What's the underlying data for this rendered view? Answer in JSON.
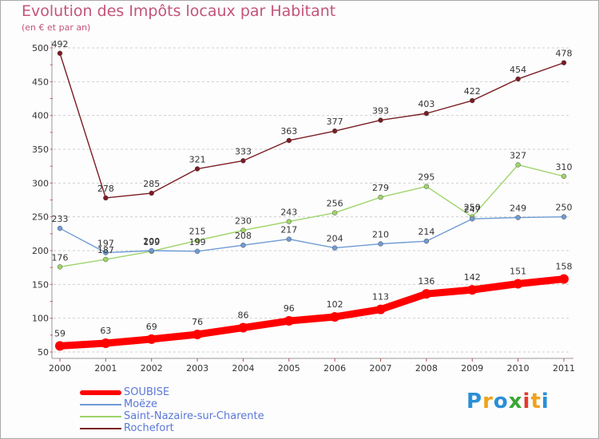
{
  "chart_data": {
    "type": "line",
    "title": "Evolution des Impôts locaux par Habitant",
    "subtitle": "(en € et par an)",
    "xlabel": "",
    "ylabel": "",
    "ylim": [
      50,
      500
    ],
    "yticks": [
      50,
      100,
      150,
      200,
      250,
      300,
      350,
      400,
      450,
      500
    ],
    "categories": [
      "2000",
      "2001",
      "2002",
      "2003",
      "2004",
      "2005",
      "2006",
      "2007",
      "2008",
      "2009",
      "2010",
      "2011"
    ],
    "grid": "horizontal dashed",
    "legend_position": "bottom-left",
    "series": [
      {
        "name": "Rochefort",
        "color": "#7a1c22",
        "values": [
          492,
          278,
          285,
          321,
          333,
          363,
          377,
          393,
          403,
          422,
          454,
          478
        ]
      },
      {
        "name": "Saint-Nazaire-sur-Charente",
        "color": "#9ed36a",
        "values": [
          176,
          187,
          199,
          215,
          230,
          243,
          256,
          279,
          295,
          250,
          327,
          310
        ]
      },
      {
        "name": "Moëze",
        "color": "#6f9bd4",
        "values": [
          233,
          197,
          200,
          199,
          208,
          217,
          204,
          210,
          214,
          247,
          249,
          250
        ]
      },
      {
        "name": "SOUBISE",
        "color": "#ff0000",
        "values": [
          59,
          63,
          69,
          76,
          86,
          96,
          102,
          113,
          136,
          142,
          151,
          158
        ]
      }
    ],
    "data_labels": {
      "Rochefort": [
        "492",
        "278",
        "285",
        "321",
        "333",
        "363",
        "377",
        "393",
        "403",
        "422",
        "454",
        "478"
      ],
      "Saint-Nazaire-sur-Charente": [
        "176",
        "187",
        "199",
        "215",
        "230",
        "243",
        "256",
        "279",
        "295",
        "250",
        "327",
        "310"
      ],
      "Moëze": [
        "233",
        "197",
        "200",
        "199",
        "208",
        "217",
        "204",
        "210",
        "214",
        "247",
        "249",
        "250"
      ],
      "SOUBISE": [
        "59",
        "63",
        "69",
        "76",
        "86",
        "96",
        "102",
        "113",
        "136",
        "142",
        "151",
        "158"
      ]
    }
  },
  "legend": [
    {
      "label": "SOUBISE",
      "color": "#ff0000"
    },
    {
      "label": "Moëze",
      "color": "#6f9bd4"
    },
    {
      "label": "Saint-Nazaire-sur-Charente",
      "color": "#9ed36a"
    },
    {
      "label": "Rochefort",
      "color": "#7a1c22"
    }
  ],
  "brand": {
    "letters": [
      "P",
      "r",
      "o",
      "x",
      "i",
      "t",
      "i"
    ],
    "colors": [
      "#2a8fd6",
      "#f0a21a",
      "#2a8fd6",
      "#3aa635",
      "#e23a2a",
      "#f0a21a",
      "#2a8fd6"
    ]
  }
}
